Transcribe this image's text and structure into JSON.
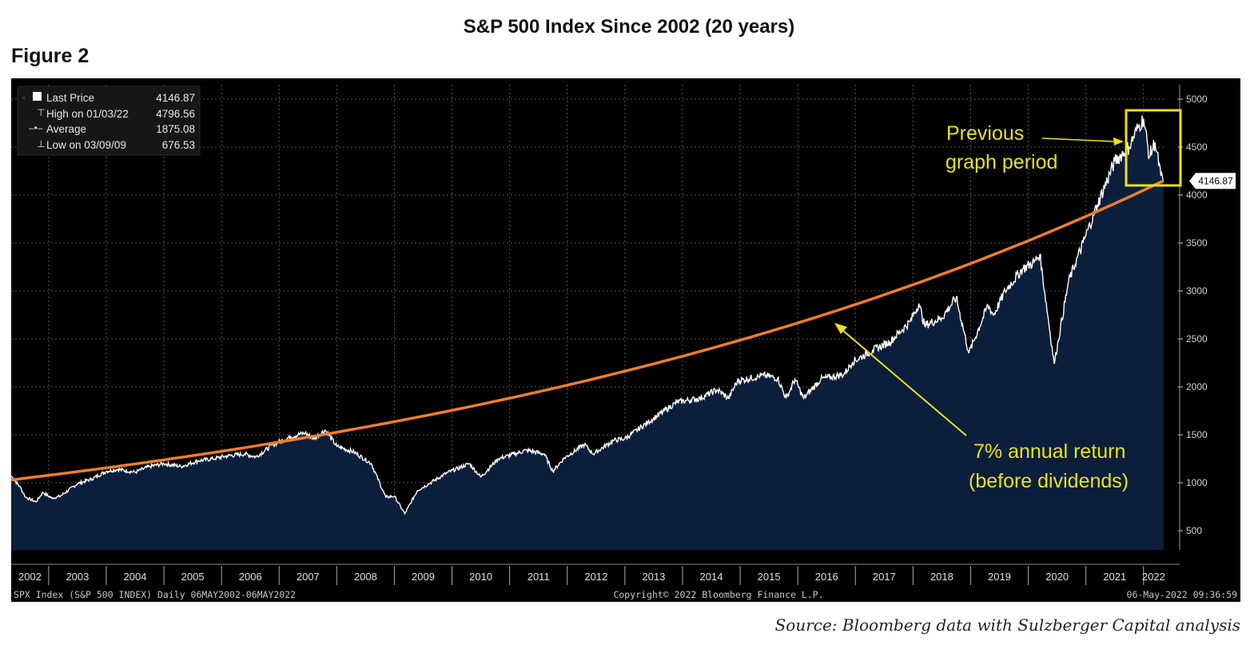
{
  "page": {
    "title": "S&P 500 Index Since 2002 (20 years)",
    "figure_label": "Figure 2",
    "source": "Source: Bloomberg data with Sulzberger Capital analysis"
  },
  "chart_data": {
    "type": "area",
    "grid": true,
    "y_axis_side": "right",
    "xlim": [
      2002.35,
      2022.35
    ],
    "ylim": [
      300,
      5150
    ],
    "ytick_labels": [
      "500",
      "1000",
      "1500",
      "2000",
      "2500",
      "3000",
      "3500",
      "4000",
      "4500",
      "5000"
    ],
    "xtick_labels": [
      "2002",
      "2003",
      "2004",
      "2005",
      "2006",
      "2007",
      "2008",
      "2009",
      "2010",
      "2011",
      "2012",
      "2013",
      "2014",
      "2015",
      "2016",
      "2017",
      "2018",
      "2019",
      "2020",
      "2021",
      "2022"
    ],
    "legend": {
      "position": "top-left",
      "items": [
        {
          "label": "Last Price",
          "value": "4146.87"
        },
        {
          "label": "High on 01/03/22",
          "value": "4796.56"
        },
        {
          "label": "Average",
          "value": "1875.08"
        },
        {
          "label": "Low on 03/09/09",
          "value": "676.53"
        }
      ]
    },
    "last_price_tag": "4146.87",
    "series": [
      {
        "name": "SPX Index (S&P 500 INDEX)",
        "color": "#ffffff",
        "fill": "#0b1e3c",
        "x": [
          2002.35,
          2002.5,
          2002.6,
          2002.78,
          2002.9,
          2003.05,
          2003.2,
          2003.5,
          2003.75,
          2004.0,
          2004.2,
          2004.5,
          2004.75,
          2005.0,
          2005.3,
          2005.6,
          2005.85,
          2006.1,
          2006.4,
          2006.6,
          2006.9,
          2007.2,
          2007.45,
          2007.6,
          2007.8,
          2008.0,
          2008.3,
          2008.6,
          2008.85,
          2009.0,
          2009.18,
          2009.4,
          2009.6,
          2009.9,
          2010.3,
          2010.5,
          2010.8,
          2011.3,
          2011.6,
          2011.75,
          2011.95,
          2012.3,
          2012.45,
          2012.8,
          2013.0,
          2013.4,
          2013.9,
          2014.3,
          2014.6,
          2014.8,
          2014.95,
          2015.4,
          2015.65,
          2015.8,
          2015.95,
          2016.1,
          2016.4,
          2016.8,
          2016.95,
          2017.3,
          2017.6,
          2017.95,
          2018.1,
          2018.2,
          2018.5,
          2018.75,
          2018.97,
          2019.3,
          2019.4,
          2019.6,
          2019.9,
          2020.1,
          2020.2,
          2020.45,
          2020.7,
          2020.95,
          2021.2,
          2021.5,
          2021.75,
          2021.9,
          2022.0,
          2022.1,
          2022.2,
          2022.3,
          2022.35
        ],
        "y": [
          1070,
          960,
          850,
          800,
          900,
          840,
          860,
          990,
          1040,
          1120,
          1140,
          1110,
          1170,
          1200,
          1170,
          1230,
          1250,
          1280,
          1300,
          1270,
          1400,
          1480,
          1520,
          1460,
          1550,
          1380,
          1320,
          1200,
          850,
          860,
          676.53,
          920,
          990,
          1100,
          1200,
          1060,
          1250,
          1340,
          1300,
          1120,
          1260,
          1400,
          1300,
          1440,
          1460,
          1630,
          1840,
          1880,
          1970,
          1880,
          2060,
          2120,
          2090,
          1880,
          2080,
          1880,
          2080,
          2130,
          2260,
          2380,
          2470,
          2680,
          2870,
          2640,
          2720,
          2930,
          2350,
          2850,
          2750,
          3000,
          3230,
          3300,
          3380,
          2240,
          3100,
          3500,
          3900,
          4350,
          4500,
          4700,
          4796.56,
          4400,
          4550,
          4200,
          4146.87
        ]
      },
      {
        "name": "7% annual return (before dividends)",
        "color": "#f07d2a",
        "x": [
          2002.35,
          2022.35
        ],
        "y": [
          1030,
          4150
        ],
        "growth": "exponential"
      }
    ],
    "annotations": [
      {
        "label": "Previous graph period",
        "color": "#e8e21a"
      },
      {
        "label": "7% annual return (before dividends)",
        "color": "#e8e21a"
      }
    ]
  },
  "footer": {
    "left": "SPX Index (S&P 500 INDEX)  Daily 06MAY2002-06MAY2022",
    "center": "Copyright© 2022 Bloomberg Finance L.P.",
    "right": "06-May-2022 09:36:59"
  },
  "colors": {
    "area_fill": "#0b1e3c",
    "line": "#ffffff",
    "trend": "#f07d2a",
    "annotation": "#e8e21a",
    "background": "#000000"
  }
}
